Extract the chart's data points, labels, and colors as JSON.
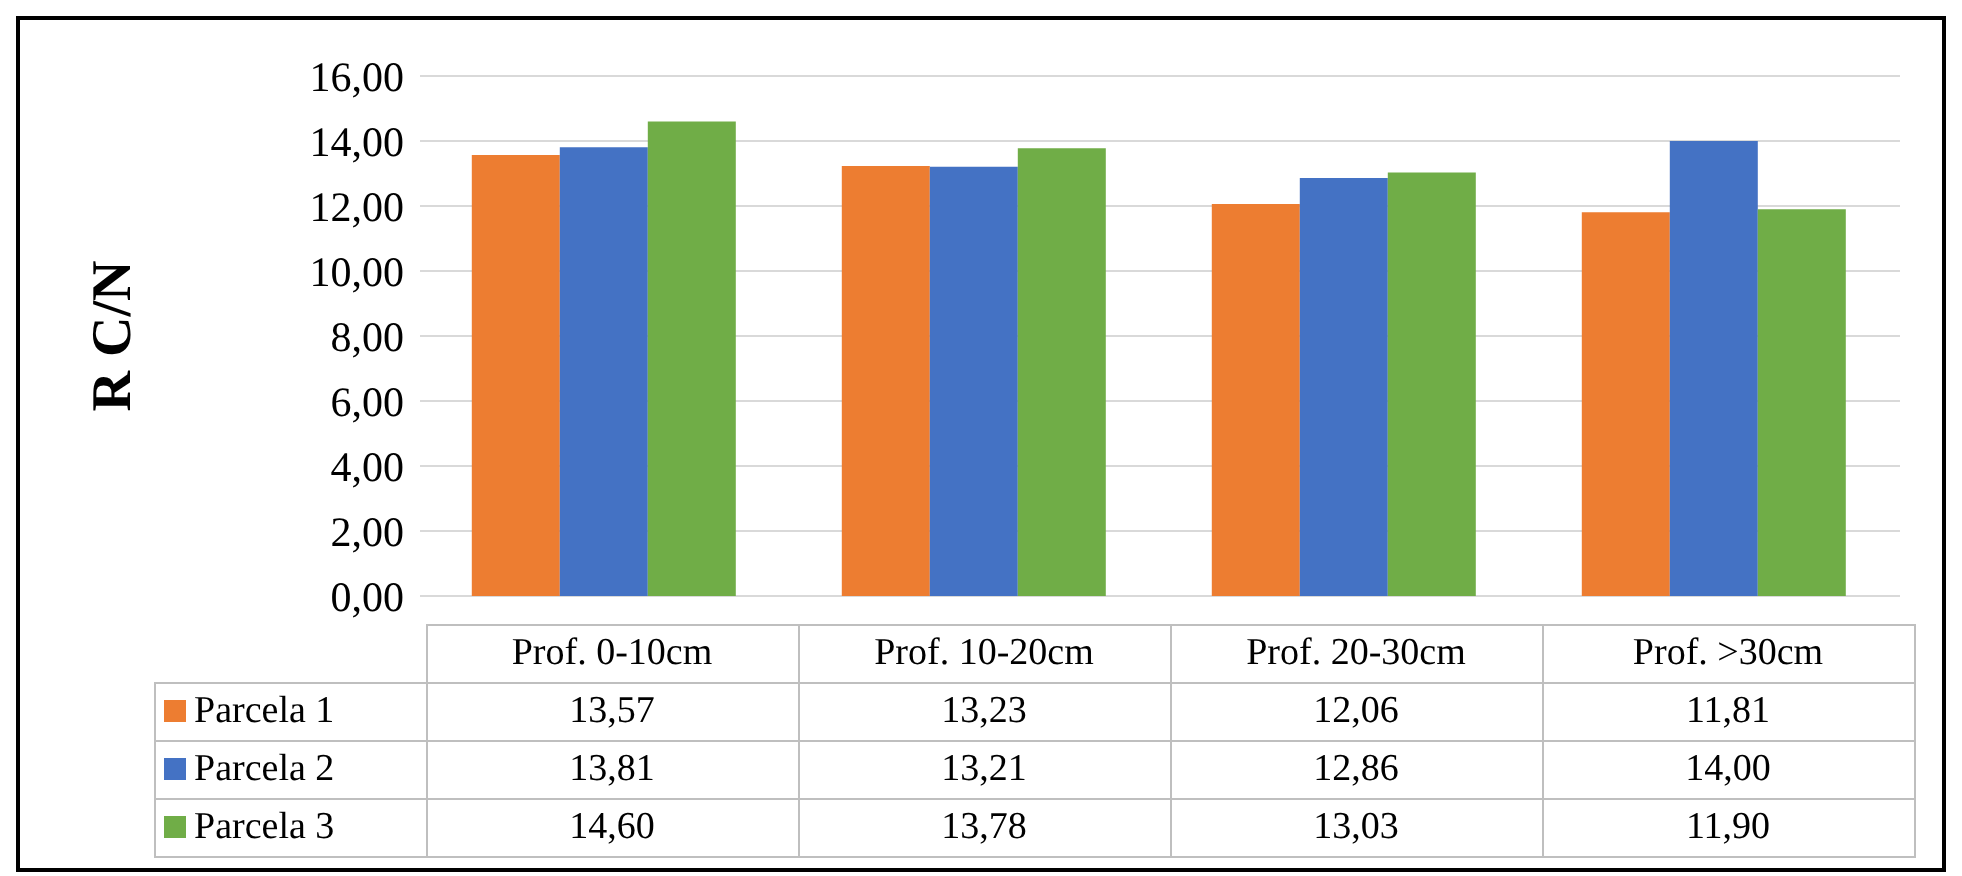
{
  "chart_data": {
    "type": "bar",
    "ylabel": "R C/N",
    "categories": [
      "Prof. 0-10cm",
      "Prof. 10-20cm",
      "Prof. 20-30cm",
      "Prof. >30cm"
    ],
    "series": [
      {
        "name": "Parcela 1",
        "color": "#ed7d31",
        "values": [
          13.57,
          13.23,
          12.06,
          11.81
        ],
        "value_labels": [
          "13,57",
          "13,23",
          "12,06",
          "11,81"
        ]
      },
      {
        "name": "Parcela 2",
        "color": "#4472c4",
        "values": [
          13.81,
          13.21,
          12.86,
          14.0
        ],
        "value_labels": [
          "13,81",
          "13,21",
          "12,86",
          "14,00"
        ]
      },
      {
        "name": "Parcela 3",
        "color": "#70ad47",
        "values": [
          14.6,
          13.78,
          13.03,
          11.9
        ],
        "value_labels": [
          "14,60",
          "13,78",
          "13,03",
          "11,90"
        ]
      }
    ],
    "ylim": [
      0,
      16
    ],
    "yticks": [
      {
        "value": 0,
        "label": "0,00"
      },
      {
        "value": 2,
        "label": "2,00"
      },
      {
        "value": 4,
        "label": "4,00"
      },
      {
        "value": 6,
        "label": "6,00"
      },
      {
        "value": 8,
        "label": "8,00"
      },
      {
        "value": 10,
        "label": "10,00"
      },
      {
        "value": 12,
        "label": "12,00"
      },
      {
        "value": 14,
        "label": "14,00"
      },
      {
        "value": 16,
        "label": "16,00"
      }
    ],
    "grid": "y",
    "legend": "bottom"
  }
}
